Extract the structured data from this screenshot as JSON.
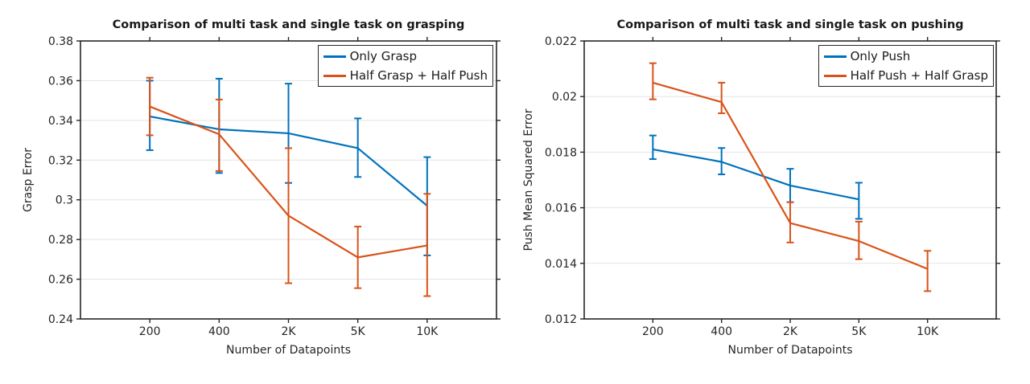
{
  "chart_data": [
    {
      "type": "line",
      "title": "Comparison of multi task and single task on grasping",
      "xlabel": "Number of Datapoints",
      "ylabel": "Grasp Error",
      "categories": [
        "200",
        "400",
        "2K",
        "5K",
        "10K"
      ],
      "ylim": [
        0.24,
        0.38
      ],
      "yticks": {
        "values": [
          0.24,
          0.26,
          0.28,
          0.3,
          0.32,
          0.34,
          0.36,
          0.38
        ],
        "labels": [
          "0.24",
          "0.26",
          "0.28",
          "0.3",
          "0.32",
          "0.34",
          "0.36",
          "0.38"
        ]
      },
      "grid": "horizontal",
      "legend_position": "upper right",
      "error_bars": true,
      "series": [
        {
          "name": "Only Grasp",
          "color": "#0072BD",
          "values": [
            0.342,
            0.3355,
            0.3335,
            0.326,
            0.297
          ],
          "err_low": [
            0.325,
            0.3135,
            0.3085,
            0.3115,
            0.272
          ],
          "err_high": [
            0.36,
            0.361,
            0.3585,
            0.341,
            0.3215
          ]
        },
        {
          "name": "Half Grasp + Half Push",
          "color": "#D95319",
          "values": [
            0.347,
            0.333,
            0.292,
            0.271,
            0.277
          ],
          "err_low": [
            0.3325,
            0.3145,
            0.258,
            0.2555,
            0.2515
          ],
          "err_high": [
            0.3615,
            0.3505,
            0.326,
            0.2865,
            0.303
          ]
        }
      ]
    },
    {
      "type": "line",
      "title": "Comparison of multi task and single task on pushing",
      "xlabel": "Number of Datapoints",
      "ylabel": "Push Mean Squared Error",
      "categories": [
        "200",
        "400",
        "2K",
        "5K",
        "10K"
      ],
      "ylim": [
        0.012,
        0.022
      ],
      "yticks": {
        "values": [
          0.012,
          0.014,
          0.016,
          0.018,
          0.02,
          0.022
        ],
        "labels": [
          "0.012",
          "0.014",
          "0.016",
          "0.018",
          "0.02",
          "0.022"
        ]
      },
      "grid": "horizontal",
      "legend_position": "upper right",
      "error_bars": true,
      "series": [
        {
          "name": "Only Push",
          "color": "#0072BD",
          "values": [
            0.0181,
            0.01765,
            0.0168,
            0.0163,
            null
          ],
          "err_low": [
            0.01775,
            0.0172,
            0.0162,
            0.0156,
            null
          ],
          "err_high": [
            0.0186,
            0.01815,
            0.0174,
            0.0169,
            null
          ]
        },
        {
          "name": "Half Push + Half Grasp",
          "color": "#D95319",
          "values": [
            0.0205,
            0.0198,
            0.01545,
            0.0148,
            0.0138
          ],
          "err_low": [
            0.0199,
            0.0194,
            0.01475,
            0.01415,
            0.013
          ],
          "err_high": [
            0.0212,
            0.0205,
            0.0162,
            0.0155,
            0.01445
          ]
        }
      ]
    }
  ]
}
